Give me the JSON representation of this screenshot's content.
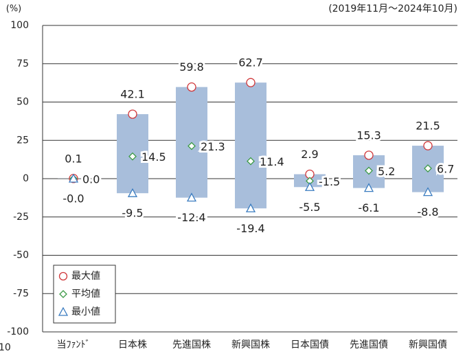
{
  "chart_data": {
    "type": "range",
    "unit_label": "(%)",
    "period": "(2019年11月～2024年10月)",
    "corner_fragment": "10",
    "categories": [
      "当ﾌｧﾝﾄﾞ",
      "日本株",
      "先進国株",
      "新興国株",
      "日本国債",
      "先進国債",
      "新興国債"
    ],
    "bar_color": "#a8bedb",
    "series": [
      {
        "name": "最大値",
        "marker": "circle",
        "color": "#d0373a",
        "label_position": "top",
        "values": [
          0.1,
          42.1,
          59.8,
          62.7,
          2.9,
          15.3,
          21.5
        ],
        "value_labels": [
          "0.1",
          "42.1",
          "59.8",
          "62.7",
          "2.9",
          "15.3",
          "21.5"
        ]
      },
      {
        "name": "平均値",
        "marker": "diamond",
        "color": "#3b9a45",
        "label_position": "right",
        "values": [
          0.0,
          14.5,
          21.3,
          11.4,
          -1.5,
          5.2,
          6.7
        ],
        "value_labels": [
          "0.0",
          "14.5",
          "21.3",
          "11.4",
          "-1.5",
          "5.2",
          "6.7"
        ]
      },
      {
        "name": "最小値",
        "marker": "triangle",
        "color": "#3a7cc0",
        "label_position": "bottom",
        "values": [
          -0.0,
          -9.5,
          -12.4,
          -19.4,
          -5.5,
          -6.1,
          -8.8
        ],
        "value_labels": [
          "-0.0",
          "-9.5",
          "-12.4",
          "-19.4",
          "-5.5",
          "-6.1",
          "-8.8"
        ]
      }
    ],
    "ylim": [
      -100,
      100
    ],
    "yticks": [
      -100,
      -75,
      -50,
      -25,
      0,
      25,
      50,
      75,
      100
    ],
    "grid": true,
    "legend": "lower left"
  }
}
